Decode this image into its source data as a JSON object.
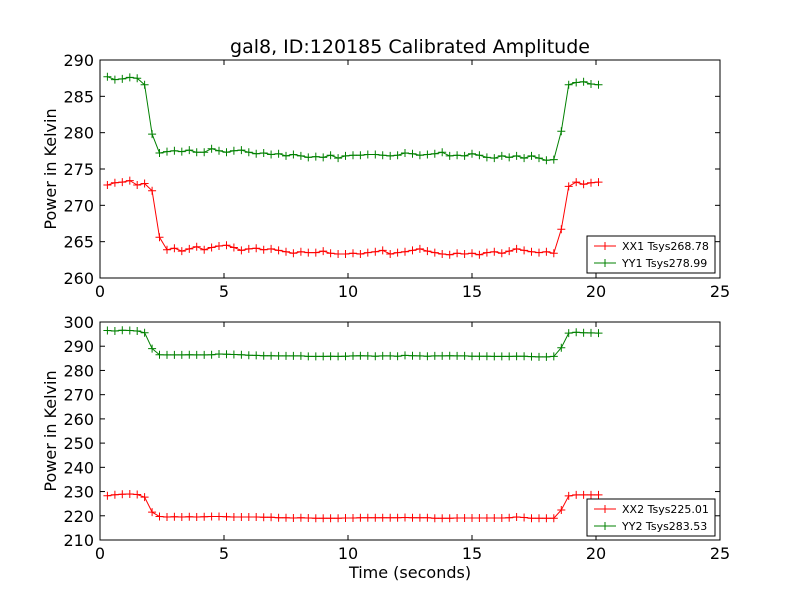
{
  "chart_data": [
    {
      "type": "line",
      "title": "gal8, ID:120185 Calibrated Amplitude",
      "xlabel": "",
      "ylabel": "Power in Kelvin",
      "xlim": [
        0,
        25
      ],
      "ylim": [
        260,
        290
      ],
      "xticks": [
        0,
        5,
        10,
        15,
        20,
        25
      ],
      "yticks": [
        260,
        265,
        270,
        275,
        280,
        285,
        290
      ],
      "grid": false,
      "legend_position": "lower-right",
      "series": [
        {
          "name": "XX1 Tsys268.78",
          "color": "#ff0000",
          "marker": "plus",
          "x": [
            0.3,
            0.6,
            0.9,
            1.2,
            1.5,
            1.8,
            2.1,
            2.4,
            2.7,
            3.0,
            3.3,
            3.6,
            3.9,
            4.2,
            4.5,
            4.8,
            5.1,
            5.4,
            5.7,
            6.0,
            6.3,
            6.6,
            6.9,
            7.2,
            7.5,
            7.8,
            8.1,
            8.4,
            8.7,
            9.0,
            9.3,
            9.6,
            9.9,
            10.2,
            10.5,
            10.8,
            11.1,
            11.4,
            11.7,
            12.0,
            12.3,
            12.6,
            12.9,
            13.2,
            13.5,
            13.8,
            14.1,
            14.4,
            14.7,
            15.0,
            15.3,
            15.6,
            15.9,
            16.2,
            16.5,
            16.8,
            17.1,
            17.4,
            17.7,
            18.0,
            18.3,
            18.6,
            18.9,
            19.2,
            19.5,
            19.8,
            20.1
          ],
          "y": [
            272.8,
            273.1,
            273.2,
            273.4,
            272.8,
            273.0,
            272.0,
            265.6,
            263.9,
            264.1,
            263.7,
            264.0,
            264.3,
            263.9,
            264.2,
            264.4,
            264.5,
            264.2,
            263.8,
            264.0,
            264.1,
            263.9,
            264.0,
            263.8,
            263.6,
            263.4,
            263.6,
            263.5,
            263.5,
            263.7,
            263.4,
            263.3,
            263.3,
            263.4,
            263.3,
            263.5,
            263.6,
            263.8,
            263.3,
            263.5,
            263.6,
            263.8,
            264.0,
            263.7,
            263.5,
            263.3,
            263.2,
            263.4,
            263.3,
            263.4,
            263.2,
            263.5,
            263.6,
            263.4,
            263.7,
            264.0,
            263.8,
            263.6,
            263.5,
            263.6,
            263.4,
            266.7,
            272.6,
            273.2,
            272.9,
            273.1,
            273.2
          ]
        },
        {
          "name": "YY1 Tsys278.99",
          "color": "#008000",
          "marker": "plus",
          "x": [
            0.3,
            0.6,
            0.9,
            1.2,
            1.5,
            1.8,
            2.1,
            2.4,
            2.7,
            3.0,
            3.3,
            3.6,
            3.9,
            4.2,
            4.5,
            4.8,
            5.1,
            5.4,
            5.7,
            6.0,
            6.3,
            6.6,
            6.9,
            7.2,
            7.5,
            7.8,
            8.1,
            8.4,
            8.7,
            9.0,
            9.3,
            9.6,
            9.9,
            10.2,
            10.5,
            10.8,
            11.1,
            11.4,
            11.7,
            12.0,
            12.3,
            12.6,
            12.9,
            13.2,
            13.5,
            13.8,
            14.1,
            14.4,
            14.7,
            15.0,
            15.3,
            15.6,
            15.9,
            16.2,
            16.5,
            16.8,
            17.1,
            17.4,
            17.7,
            18.0,
            18.3,
            18.6,
            18.9,
            19.2,
            19.5,
            19.8,
            20.1
          ],
          "y": [
            287.7,
            287.3,
            287.4,
            287.6,
            287.5,
            286.6,
            279.8,
            277.2,
            277.4,
            277.5,
            277.4,
            277.6,
            277.3,
            277.3,
            277.8,
            277.5,
            277.3,
            277.5,
            277.6,
            277.3,
            277.1,
            277.2,
            277.0,
            277.1,
            276.8,
            277.0,
            276.8,
            276.6,
            276.7,
            276.6,
            276.9,
            276.5,
            276.8,
            276.9,
            276.9,
            277.0,
            277.0,
            276.9,
            276.8,
            276.9,
            277.2,
            277.1,
            276.9,
            277.0,
            277.1,
            277.3,
            276.8,
            276.9,
            276.8,
            277.1,
            276.9,
            276.6,
            276.5,
            276.8,
            276.6,
            276.8,
            276.5,
            276.8,
            276.5,
            276.2,
            276.3,
            280.2,
            286.6,
            286.9,
            287.0,
            286.7,
            286.6
          ]
        }
      ]
    },
    {
      "type": "line",
      "title": "",
      "xlabel": "Time (seconds)",
      "ylabel": "Power in Kelvin",
      "xlim": [
        0,
        25
      ],
      "ylim": [
        210,
        300
      ],
      "xticks": [
        0,
        5,
        10,
        15,
        20,
        25
      ],
      "yticks": [
        210,
        220,
        230,
        240,
        250,
        260,
        270,
        280,
        290,
        300
      ],
      "grid": false,
      "legend_position": "lower-right",
      "series": [
        {
          "name": "XX2 Tsys225.01",
          "color": "#ff0000",
          "marker": "plus",
          "x": [
            0.3,
            0.6,
            0.9,
            1.2,
            1.5,
            1.8,
            2.1,
            2.4,
            2.7,
            3.0,
            3.3,
            3.6,
            3.9,
            4.2,
            4.5,
            4.8,
            5.1,
            5.4,
            5.7,
            6.0,
            6.3,
            6.6,
            6.9,
            7.2,
            7.5,
            7.8,
            8.1,
            8.4,
            8.7,
            9.0,
            9.3,
            9.6,
            9.9,
            10.2,
            10.5,
            10.8,
            11.1,
            11.4,
            11.7,
            12.0,
            12.3,
            12.6,
            12.9,
            13.2,
            13.5,
            13.8,
            14.1,
            14.4,
            14.7,
            15.0,
            15.3,
            15.6,
            15.9,
            16.2,
            16.5,
            16.8,
            17.1,
            17.4,
            17.7,
            18.0,
            18.3,
            18.6,
            18.9,
            19.2,
            19.5,
            19.8,
            20.1
          ],
          "y": [
            228.3,
            228.7,
            228.9,
            229.0,
            228.8,
            227.7,
            221.5,
            219.7,
            219.5,
            219.6,
            219.5,
            219.6,
            219.5,
            219.6,
            219.7,
            219.7,
            219.6,
            219.5,
            219.5,
            219.5,
            219.5,
            219.4,
            219.4,
            219.2,
            219.2,
            219.1,
            219.2,
            219.1,
            219.0,
            219.0,
            219.0,
            219.0,
            219.1,
            219.1,
            219.2,
            219.2,
            219.2,
            219.2,
            219.2,
            219.2,
            219.3,
            219.2,
            219.2,
            219.2,
            219.0,
            219.0,
            219.0,
            219.1,
            219.1,
            219.1,
            219.1,
            219.1,
            219.1,
            219.1,
            219.2,
            219.5,
            219.3,
            219.0,
            219.0,
            219.0,
            219.0,
            222.4,
            228.2,
            228.6,
            228.6,
            228.6,
            228.6
          ]
        },
        {
          "name": "YY2 Tsys283.53",
          "color": "#008000",
          "marker": "plus",
          "x": [
            0.3,
            0.6,
            0.9,
            1.2,
            1.5,
            1.8,
            2.1,
            2.4,
            2.7,
            3.0,
            3.3,
            3.6,
            3.9,
            4.2,
            4.5,
            4.8,
            5.1,
            5.4,
            5.7,
            6.0,
            6.3,
            6.6,
            6.9,
            7.2,
            7.5,
            7.8,
            8.1,
            8.4,
            8.7,
            9.0,
            9.3,
            9.6,
            9.9,
            10.2,
            10.5,
            10.8,
            11.1,
            11.4,
            11.7,
            12.0,
            12.3,
            12.6,
            12.9,
            13.2,
            13.5,
            13.8,
            14.1,
            14.4,
            14.7,
            15.0,
            15.3,
            15.6,
            15.9,
            16.2,
            16.5,
            16.8,
            17.1,
            17.4,
            17.7,
            18.0,
            18.3,
            18.6,
            18.9,
            19.2,
            19.5,
            19.8,
            20.1
          ],
          "y": [
            296.5,
            296.3,
            296.6,
            296.5,
            296.3,
            295.6,
            289.0,
            286.5,
            286.4,
            286.4,
            286.4,
            286.5,
            286.4,
            286.4,
            286.5,
            286.8,
            286.7,
            286.6,
            286.5,
            286.3,
            286.2,
            286.1,
            286.1,
            286.0,
            286.0,
            286.0,
            286.0,
            285.8,
            285.8,
            285.8,
            285.9,
            285.8,
            285.9,
            286.0,
            286.1,
            286.0,
            285.9,
            286.0,
            286.0,
            285.9,
            286.2,
            286.1,
            286.0,
            285.9,
            286.0,
            286.0,
            286.1,
            286.0,
            286.0,
            285.9,
            285.9,
            285.9,
            285.8,
            285.8,
            285.8,
            285.9,
            285.9,
            285.7,
            285.6,
            285.6,
            285.8,
            289.4,
            295.4,
            295.8,
            295.6,
            295.5,
            295.4
          ]
        }
      ]
    }
  ]
}
